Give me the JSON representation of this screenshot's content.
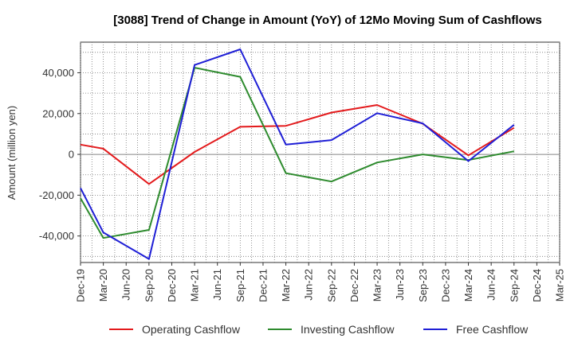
{
  "chart_data": {
    "type": "line",
    "title": "[3088]  Trend of Change in Amount (YoY) of 12Mo Moving Sum of Cashflows",
    "xlabel": "",
    "ylabel": "Amount (million yen)",
    "ylim": [
      -53000,
      55000
    ],
    "yticks": [
      40000,
      20000,
      0,
      -20000,
      -40000
    ],
    "ytick_labels": [
      "40,000",
      "20,000",
      "0",
      "-20,000",
      "-40,000"
    ],
    "categories": [
      "Dec-19",
      "Mar-20",
      "Jun-20",
      "Sep-20",
      "Dec-20",
      "Mar-21",
      "Jun-21",
      "Sep-21",
      "Dec-21",
      "Mar-22",
      "Jun-22",
      "Sep-22",
      "Dec-22",
      "Mar-23",
      "Jun-23",
      "Sep-23",
      "Dec-23",
      "Mar-24",
      "Jun-24",
      "Sep-24",
      "Dec-24",
      "Mar-25"
    ],
    "series": [
      {
        "name": "Operating Cashflow",
        "color": "#e31a1c",
        "values": [
          4800,
          2800,
          null,
          -14500,
          null,
          1200,
          null,
          13500,
          null,
          14000,
          null,
          20500,
          null,
          24200,
          null,
          15000,
          null,
          -500,
          null,
          13000,
          null,
          null
        ]
      },
      {
        "name": "Investing Cashflow",
        "color": "#2e8b2e",
        "values": [
          -21500,
          -41000,
          null,
          -37000,
          null,
          42500,
          null,
          38000,
          null,
          -9200,
          null,
          -13300,
          null,
          -4000,
          null,
          0,
          null,
          -2800,
          null,
          1500,
          null,
          null
        ]
      },
      {
        "name": "Free Cashflow",
        "color": "#1f1fd6",
        "values": [
          -16500,
          -38300,
          null,
          -51300,
          null,
          43800,
          null,
          51500,
          null,
          4800,
          null,
          7000,
          null,
          20200,
          null,
          15200,
          null,
          -3300,
          null,
          14500,
          null,
          null
        ]
      }
    ],
    "legend_position": "bottom"
  }
}
